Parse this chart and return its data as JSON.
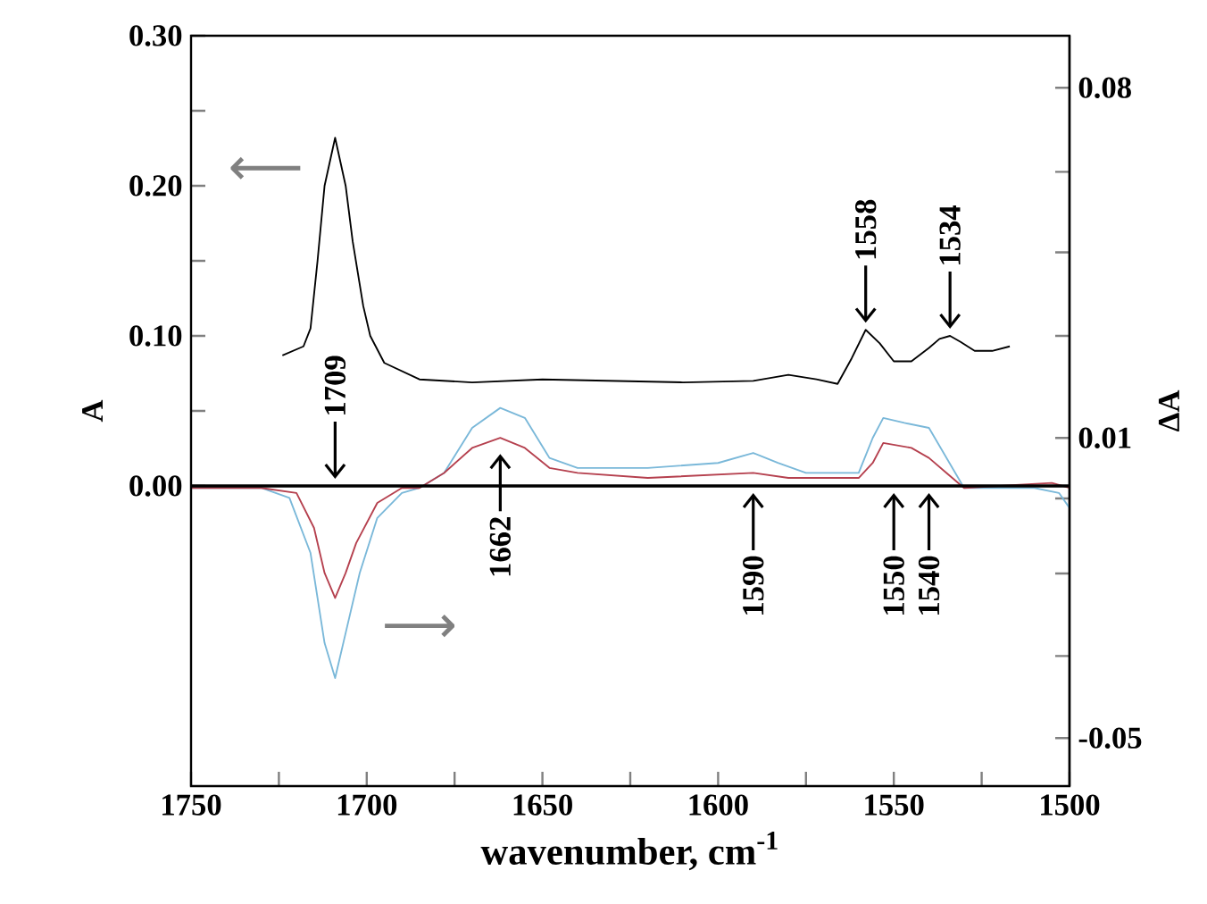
{
  "chart_data": {
    "type": "line",
    "xlabel": "wavenumber, cm$^{-1}$",
    "ylabel": "A",
    "y2label": "ΔA",
    "xlim": [
      1750,
      1500
    ],
    "xticks": [
      1750,
      {
        "value": 1725,
        "label": null
      },
      1700,
      {
        "value": 1675,
        "label": null
      },
      1650,
      {
        "value": 1625,
        "label": null
      },
      1600,
      {
        "value": 1575,
        "label": null
      },
      1550,
      {
        "value": 1525,
        "label": null
      },
      1500
    ],
    "ylim": [
      -0.2,
      0.3
    ],
    "yticks": [
      {
        "value": 0,
        "label": "0.00"
      },
      {
        "value": 0.05,
        "label": null
      },
      {
        "value": 0.1,
        "label": "0.10"
      },
      {
        "value": 0.15,
        "label": null
      },
      {
        "value": 0.2,
        "label": "0.20"
      },
      {
        "value": 0.25,
        "label": null
      },
      {
        "value": 0.3,
        "label": "0.30"
      }
    ],
    "y2lim": [
      -0.0596,
      0.0904
    ],
    "y2ticks": [
      {
        "value": -0.05,
        "label": "-0.05"
      },
      {
        "value": -0.0336,
        "label": null
      },
      {
        "value": -0.0171,
        "label": null
      },
      {
        "value": -0.0021,
        "label": null
      },
      {
        "value": 0.01,
        "label": "0.01"
      },
      {
        "value": 0.0304,
        "label": null
      },
      {
        "value": 0.0471,
        "label": null
      },
      {
        "value": 0.0632,
        "label": null
      },
      {
        "value": 0.08,
        "label": "0.08"
      }
    ],
    "marker": "none",
    "series": [
      {
        "color": "#000000",
        "x": [
          1724,
          1718,
          1716,
          1714,
          1712,
          1709,
          1706,
          1704,
          1701,
          1699,
          1695,
          1685,
          1670,
          1650,
          1630,
          1610,
          1590,
          1580,
          1572,
          1566,
          1562,
          1558,
          1554,
          1550,
          1545,
          1540,
          1537,
          1534,
          1531,
          1527,
          1522,
          1517
        ],
        "values": [
          0.087,
          0.093,
          0.105,
          0.15,
          0.2,
          0.232,
          0.2,
          0.163,
          0.12,
          0.1,
          0.082,
          0.071,
          0.069,
          0.071,
          0.07,
          0.069,
          0.07,
          0.074,
          0.071,
          0.068,
          0.085,
          0.104,
          0.095,
          0.083,
          0.083,
          0.092,
          0.098,
          0.1,
          0.096,
          0.09,
          0.09,
          0.093
        ]
      },
      {
        "color": "#7ab8d9",
        "axis": "y2",
        "x": [
          1750,
          1730,
          1722,
          1716,
          1712,
          1709,
          1706,
          1702,
          1697,
          1690,
          1685,
          1678,
          1670,
          1662,
          1655,
          1648,
          1640,
          1620,
          1600,
          1590,
          1583,
          1575,
          1560,
          1556,
          1553,
          1547,
          1540,
          1535,
          1530,
          1510,
          1503,
          1500
        ],
        "values": [
          0,
          0,
          -0.002,
          -0.013,
          -0.031,
          -0.038,
          -0.029,
          -0.017,
          -0.006,
          -0.001,
          0,
          0.003,
          0.012,
          0.016,
          0.014,
          0.006,
          0.004,
          0.004,
          0.005,
          0.007,
          0.005,
          0.003,
          0.003,
          0.01,
          0.014,
          0.013,
          0.012,
          0.006,
          0,
          0,
          -0.001,
          -0.004
        ]
      },
      {
        "color": "#b5404e",
        "axis": "y2",
        "x": [
          1750,
          1730,
          1720,
          1715,
          1712,
          1709,
          1706,
          1703,
          1697,
          1690,
          1685,
          1678,
          1670,
          1662,
          1655,
          1648,
          1640,
          1620,
          1590,
          1580,
          1560,
          1556,
          1553,
          1545,
          1540,
          1535,
          1530,
          1505,
          1500
        ],
        "values": [
          0,
          0,
          -0.001,
          -0.008,
          -0.017,
          -0.022,
          -0.017,
          -0.011,
          -0.003,
          0,
          0,
          0.003,
          0.008,
          0.01,
          0.008,
          0.004,
          0.003,
          0.002,
          0.003,
          0.002,
          0.002,
          0.005,
          0.009,
          0.008,
          0.006,
          0.003,
          0,
          0.001,
          0
        ]
      }
    ],
    "ref_lines": [
      {
        "axis": "y",
        "value": 0,
        "color": "#000000"
      }
    ],
    "annotations": [
      {
        "text": "1709",
        "x": 1709,
        "y": 0
      },
      {
        "text": "1558",
        "x": 1558,
        "y": 0.104
      },
      {
        "text": "1534",
        "x": 1534,
        "y": 0.1
      },
      {
        "text": "1662",
        "x": 1662,
        "y": 0.026
      },
      {
        "text": "1590",
        "x": 1590,
        "y": 0
      },
      {
        "text": "1550",
        "x": 1550,
        "y": 0
      },
      {
        "text": "1540",
        "x": 1540,
        "y": 0
      },
      "⟵",
      "⟶"
    ]
  }
}
